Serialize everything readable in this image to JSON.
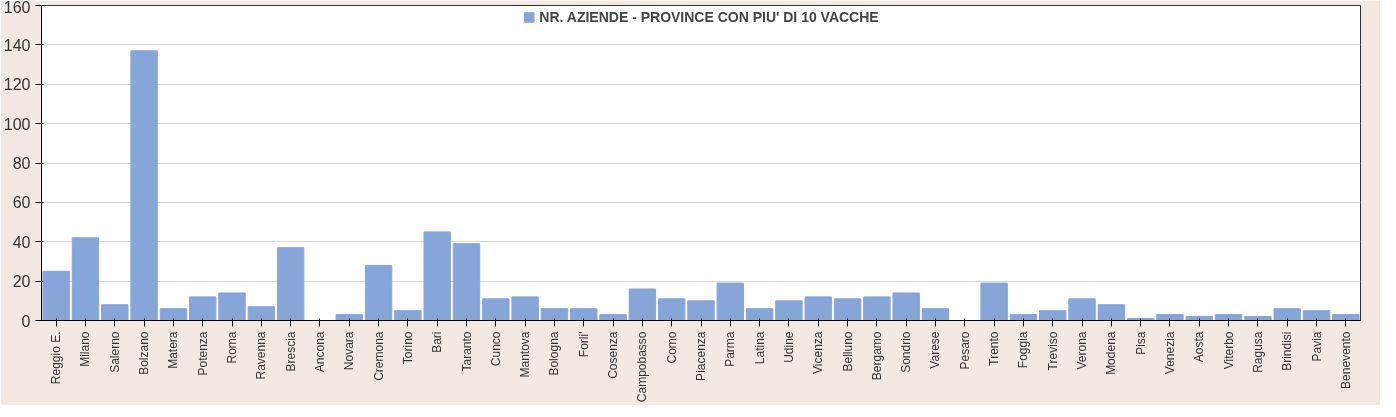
{
  "chart_data": {
    "type": "bar",
    "categories": [
      "Reggio E.",
      "Milano",
      "Salerno",
      "Bolzano",
      "Matera",
      "Potenza",
      "Roma",
      "Ravenna",
      "Brescia",
      "Ancona",
      "Novara",
      "Cremona",
      "Torino",
      "Bari",
      "Taranto",
      "Cunco",
      "Mantova",
      "Bologna",
      "Forli'",
      "Cosenza",
      "Campobasso",
      "Como",
      "Piacenza",
      "Parma",
      "Latina",
      "Udine",
      "Vicenza",
      "Belluno",
      "Bergamo",
      "Sondrio",
      "Varese",
      "Pesaro",
      "Trento",
      "Foggia",
      "Treviso",
      "Verona",
      "Modena",
      "Pisa",
      "Venezia",
      "Aosta",
      "Viterbo",
      "Ragusa",
      "Brindisi",
      "Pavia",
      "Benevento"
    ],
    "series": [
      {
        "name": "NR. AZIENDE - PROVINCE CON PIU' DI 10 VACCHE",
        "color": "#86a5d8",
        "values": [
          25,
          42,
          8,
          137,
          6,
          12,
          14,
          7,
          37,
          0,
          3,
          28,
          5,
          45,
          39,
          11,
          12,
          6,
          6,
          3,
          16,
          11,
          10,
          19,
          6,
          10,
          12,
          11,
          12,
          14,
          6,
          0,
          19,
          3,
          5,
          11,
          8,
          1,
          3,
          2,
          3,
          2,
          6,
          5,
          3
        ]
      }
    ],
    "ylim": [
      0,
      160
    ],
    "yticks": [
      0,
      20,
      40,
      60,
      80,
      100,
      120,
      140,
      160
    ],
    "grid": "y",
    "legend": "top"
  }
}
